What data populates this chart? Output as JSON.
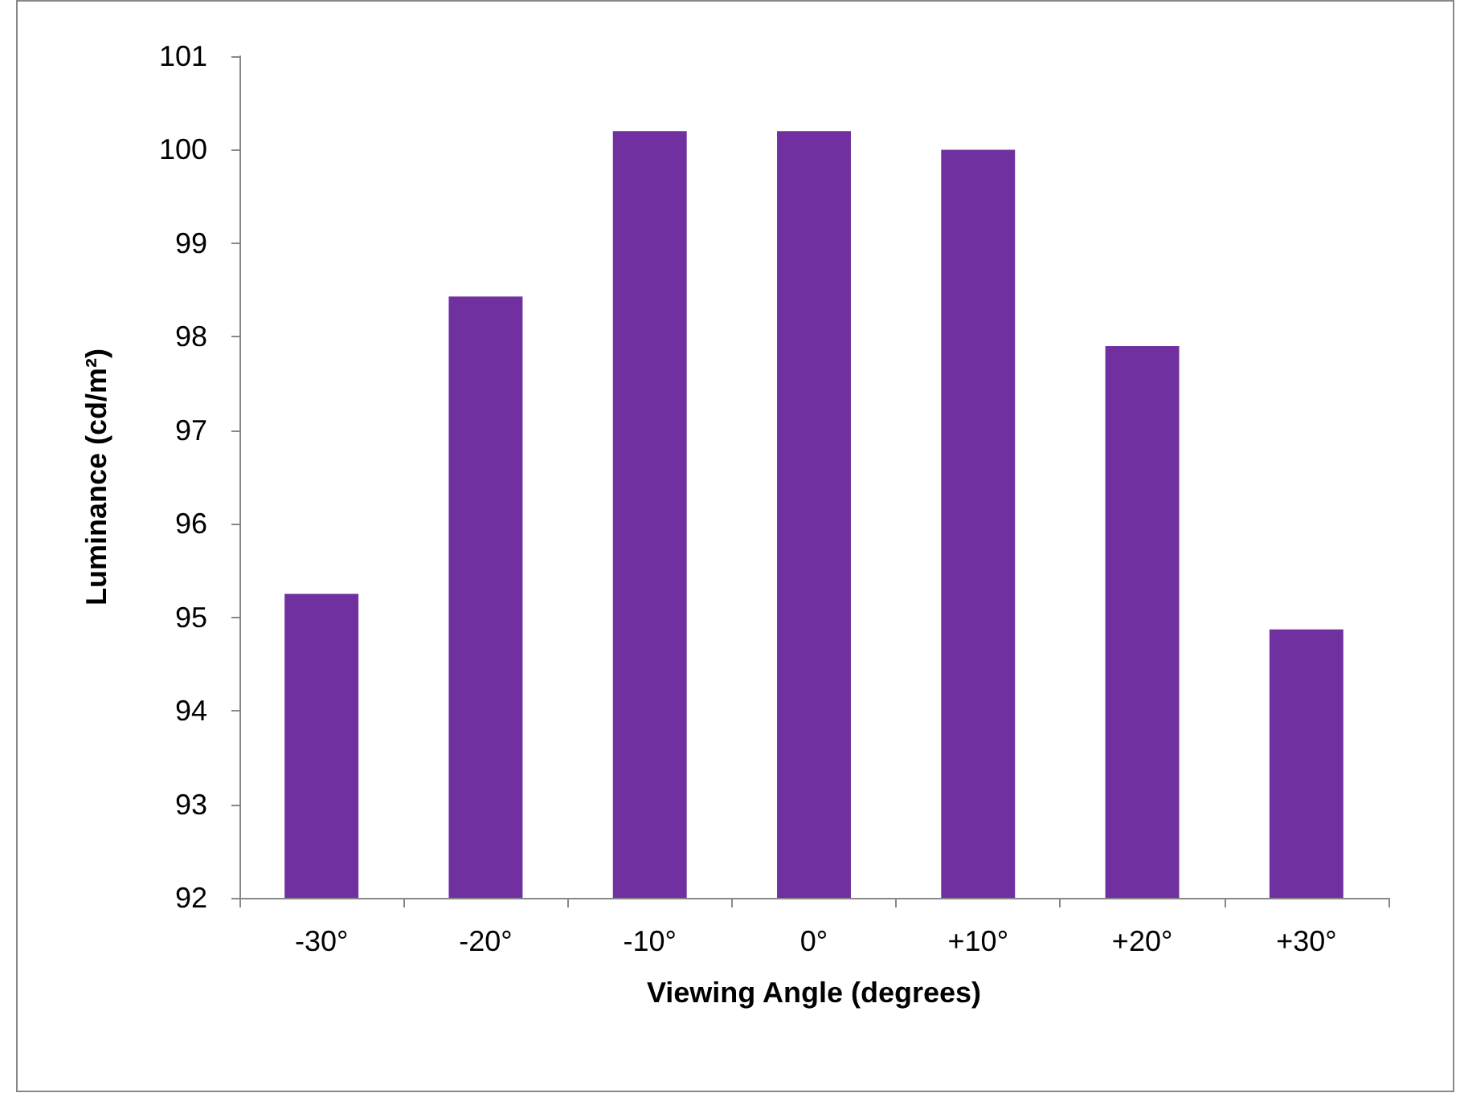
{
  "chart_data": {
    "type": "bar",
    "xlabel": "Viewing Angle (degrees)",
    "ylabel": "Luminance (cd/m²)",
    "categories": [
      "-30°",
      "-20°",
      "-10°",
      "0°",
      "+10°",
      "+20°",
      "+30°"
    ],
    "values": [
      95.25,
      98.43,
      100.2,
      100.2,
      100.0,
      97.9,
      94.87
    ],
    "color": "#7030a0",
    "ylim": [
      92,
      101
    ],
    "yticks": [
      92,
      93,
      94,
      95,
      96,
      97,
      98,
      99,
      100,
      101
    ],
    "grid": false
  }
}
